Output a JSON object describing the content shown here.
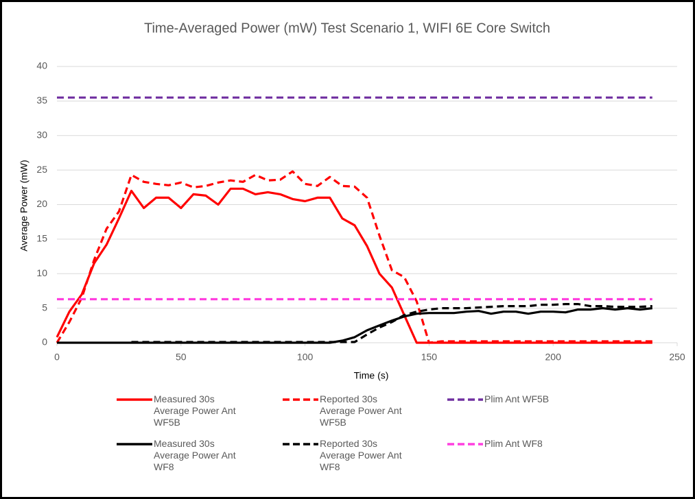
{
  "chart_data": {
    "type": "line",
    "title": "Time-Averaged Power (mW) Test Scenario 1, WIFI 6E Core Switch",
    "x_label": "Time (s)",
    "y_label": "Average Power (mW)",
    "xlim": [
      0,
      250
    ],
    "xticks": [
      0,
      50,
      100,
      150,
      200,
      250
    ],
    "ylim": [
      0,
      40
    ],
    "yticks": [
      0,
      5,
      10,
      15,
      20,
      25,
      30,
      35,
      40
    ],
    "grid": true,
    "x": [
      0,
      5,
      10,
      15,
      20,
      25,
      30,
      35,
      40,
      45,
      50,
      55,
      60,
      65,
      70,
      75,
      80,
      85,
      90,
      95,
      100,
      105,
      110,
      115,
      120,
      125,
      130,
      135,
      140,
      145,
      150,
      155,
      160,
      165,
      170,
      175,
      180,
      185,
      190,
      195,
      200,
      205,
      210,
      215,
      220,
      225,
      230,
      235,
      240
    ],
    "series": [
      {
        "name": "Measured 30s Average Power Ant WF5B",
        "color": "#ff0000",
        "dashed": false,
        "values": [
          0.8,
          4.5,
          7,
          11.5,
          14.2,
          18,
          22,
          19.5,
          21,
          21,
          19.5,
          21.5,
          21.3,
          20,
          22.3,
          22.3,
          21.5,
          21.8,
          21.5,
          20.8,
          20.5,
          21,
          21,
          18,
          17,
          14,
          10,
          8,
          4,
          0,
          0,
          0,
          0,
          0,
          0,
          0,
          0,
          0,
          0,
          0,
          0,
          0,
          0,
          0,
          0,
          0,
          0,
          0,
          0
        ]
      },
      {
        "name": "Reported 30s Average Power Ant WF5B",
        "color": "#ff0000",
        "dashed": true,
        "values": [
          0,
          3,
          6.5,
          12,
          16.5,
          19,
          24.3,
          23.3,
          23,
          22.8,
          23.2,
          22.5,
          22.7,
          23.2,
          23.5,
          23.3,
          24.3,
          23.5,
          23.6,
          24.8,
          23,
          22.7,
          24,
          22.7,
          22.6,
          21,
          15.5,
          10.5,
          9.5,
          6,
          0,
          0.2,
          0.2,
          0.2,
          0.2,
          0.2,
          0.2,
          0.2,
          0.2,
          0.2,
          0.2,
          0.2,
          0.2,
          0.2,
          0.2,
          0.2,
          0.2,
          0.2,
          0.2
        ]
      },
      {
        "name": "Plim Ant WF5B",
        "color": "#7030a0",
        "dashed": true,
        "values": [
          35.5,
          35.5,
          35.5,
          35.5,
          35.5,
          35.5,
          35.5,
          35.5,
          35.5,
          35.5,
          35.5,
          35.5,
          35.5,
          35.5,
          35.5,
          35.5,
          35.5,
          35.5,
          35.5,
          35.5,
          35.5,
          35.5,
          35.5,
          35.5,
          35.5,
          35.5,
          35.5,
          35.5,
          35.5,
          35.5,
          35.5,
          35.5,
          35.5,
          35.5,
          35.5,
          35.5,
          35.5,
          35.5,
          35.5,
          35.5,
          35.5,
          35.5,
          35.5,
          35.5,
          35.5,
          35.5,
          35.5,
          35.5,
          35.5
        ]
      },
      {
        "name": "Measured 30s Average Power Ant WF8",
        "color": "#000000",
        "dashed": false,
        "values": [
          0,
          0,
          0,
          0,
          0,
          0,
          0,
          0,
          0,
          0,
          0,
          0,
          0,
          0,
          0,
          0,
          0,
          0,
          0,
          0,
          0,
          0,
          0,
          0.3,
          0.8,
          1.8,
          2.5,
          3.2,
          3.8,
          4.2,
          4.3,
          4.3,
          4.3,
          4.5,
          4.6,
          4.2,
          4.5,
          4.5,
          4.2,
          4.5,
          4.5,
          4.4,
          4.8,
          4.8,
          5,
          4.8,
          5,
          4.8,
          5
        ]
      },
      {
        "name": "Reported 30s Average Power Ant WF8",
        "color": "#000000",
        "dashed": true,
        "values": [
          null,
          null,
          null,
          null,
          null,
          null,
          0.1,
          0.1,
          0.1,
          0.1,
          0.1,
          0.1,
          0.1,
          0.1,
          0.1,
          0.1,
          0.1,
          0.1,
          0.1,
          0.1,
          0.1,
          0.1,
          0.1,
          0.1,
          0.1,
          1.2,
          2.2,
          3,
          4,
          4.5,
          4.8,
          5,
          5,
          5,
          5.1,
          5.2,
          5.3,
          5.3,
          5.3,
          5.5,
          5.5,
          5.6,
          5.6,
          5.3,
          5.3,
          5.2,
          5.2,
          5.2,
          5.3
        ]
      },
      {
        "name": "Plim Ant WF8",
        "color": "#ff3fdf",
        "dashed": true,
        "values": [
          6.3,
          6.3,
          6.3,
          6.3,
          6.3,
          6.3,
          6.3,
          6.3,
          6.3,
          6.3,
          6.3,
          6.3,
          6.3,
          6.3,
          6.3,
          6.3,
          6.3,
          6.3,
          6.3,
          6.3,
          6.3,
          6.3,
          6.3,
          6.3,
          6.3,
          6.3,
          6.3,
          6.3,
          6.3,
          6.3,
          6.3,
          6.3,
          6.3,
          6.3,
          6.3,
          6.3,
          6.3,
          6.3,
          6.3,
          6.3,
          6.3,
          6.3,
          6.3,
          6.3,
          6.3,
          6.3,
          6.3,
          6.3,
          6.3
        ]
      }
    ]
  }
}
